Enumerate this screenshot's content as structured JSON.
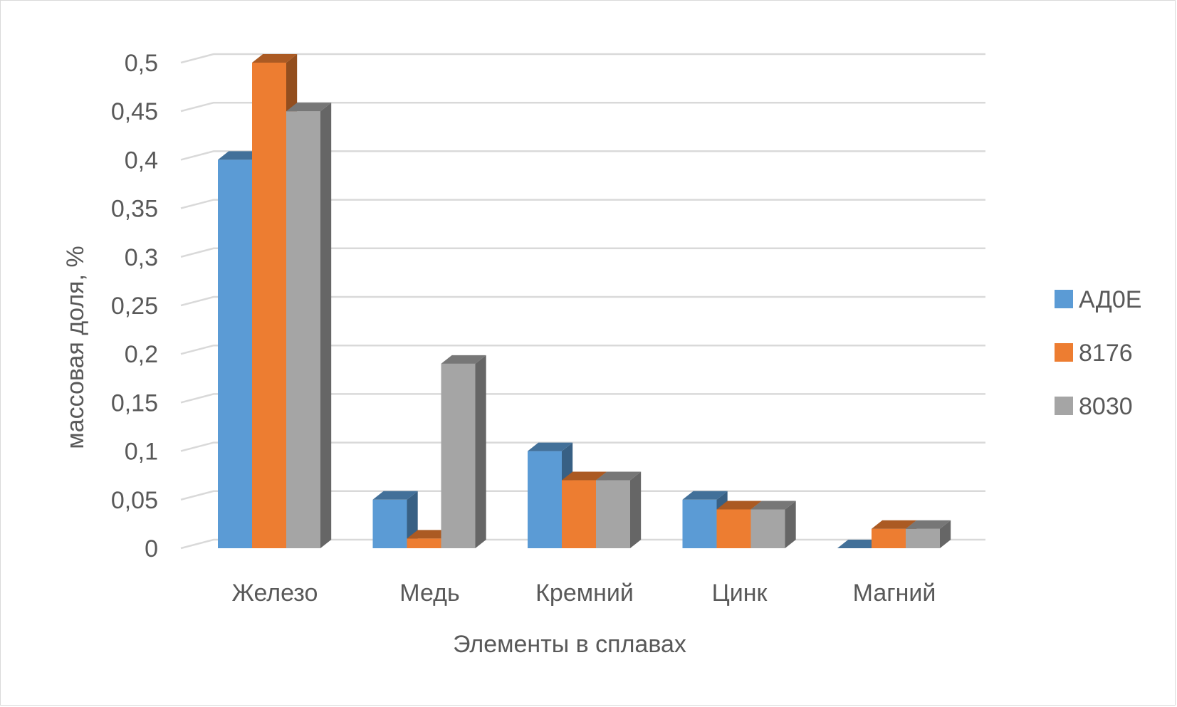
{
  "chart_data": {
    "type": "bar",
    "style": "3d-clustered-column",
    "title": "",
    "xlabel": "Элементы в сплавах",
    "ylabel": "массовая доля, %",
    "ylim": [
      0,
      0.5
    ],
    "yticks": [
      "0",
      "0,05",
      "0,1",
      "0,15",
      "0,2",
      "0,25",
      "0,3",
      "0,35",
      "0,4",
      "0,45",
      "0,5"
    ],
    "grid": true,
    "legend_position": "right",
    "categories": [
      "Железо",
      "Медь",
      "Кремний",
      "Цинк",
      "Магний"
    ],
    "series": [
      {
        "name": "АД0Е",
        "color": "#5b9bd5",
        "values": [
          0.4,
          0.05,
          0.1,
          0.05,
          0
        ]
      },
      {
        "name": "8176",
        "color": "#ed7d31",
        "values": [
          0.5,
          0.01,
          0.07,
          0.04,
          0.02
        ]
      },
      {
        "name": "8030",
        "color": "#a5a5a5",
        "values": [
          0.45,
          0.19,
          0.07,
          0.04,
          0.02
        ]
      }
    ]
  }
}
